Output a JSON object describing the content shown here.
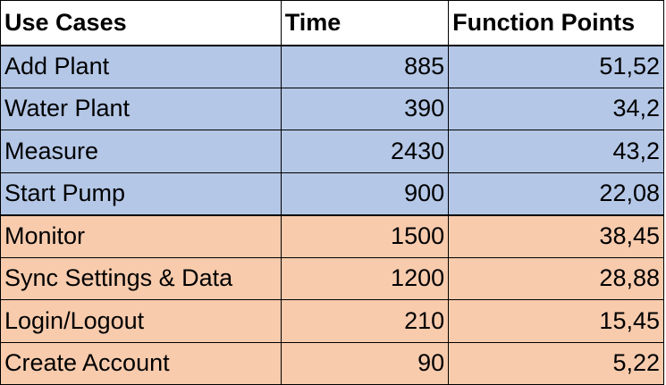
{
  "headers": {
    "use_cases": "Use Cases",
    "time": "Time",
    "function_points": "Function Points"
  },
  "colors": {
    "group_blue": "#b4c7e7",
    "group_orange": "#f8cbad"
  },
  "rows": [
    {
      "use_case": "Add Plant",
      "time": "885",
      "function_points": "51,52",
      "group": "blue"
    },
    {
      "use_case": "Water Plant",
      "time": "390",
      "function_points": "34,2",
      "group": "blue"
    },
    {
      "use_case": "Measure",
      "time": "2430",
      "function_points": "43,2",
      "group": "blue"
    },
    {
      "use_case": "Start Pump",
      "time": "900",
      "function_points": "22,08",
      "group": "blue"
    },
    {
      "use_case": "Monitor",
      "time": "1500",
      "function_points": "38,45",
      "group": "orange"
    },
    {
      "use_case": "Sync Settings & Data",
      "time": "1200",
      "function_points": "28,88",
      "group": "orange"
    },
    {
      "use_case": "Login/Logout",
      "time": "210",
      "function_points": "15,45",
      "group": "orange"
    },
    {
      "use_case": "Create Account",
      "time": "90",
      "function_points": "5,22",
      "group": "orange"
    }
  ]
}
